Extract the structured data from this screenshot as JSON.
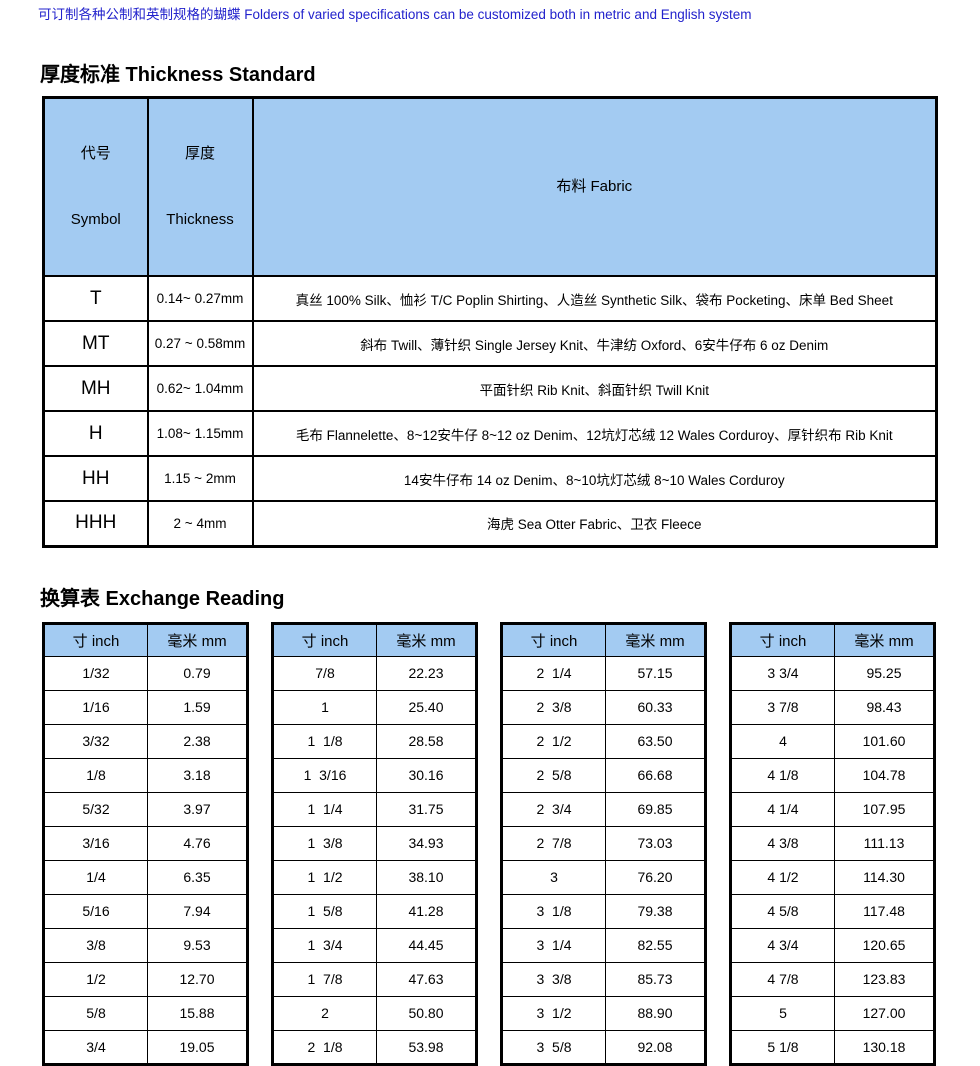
{
  "note": "可订制各种公制和英制规格的蝴蝶 Folders of varied specifications can be customized both in metric and English system",
  "colors": {
    "header_blue": "#A3CBF2",
    "note_blue": "#2222CC",
    "border_black": "#000000"
  },
  "thickness": {
    "title": "厚度标准 Thickness Standard",
    "headers": {
      "symbol_zh": "代号",
      "symbol_en": "Symbol",
      "thickness_zh": "厚度",
      "thickness_en": "Thickness",
      "fabric": "布料 Fabric"
    },
    "columns": [
      "symbol",
      "thickness",
      "fabric"
    ],
    "rows": [
      [
        "T",
        "0.14~ 0.27mm",
        "真丝 100% Silk、恤衫 T/C Poplin Shirting、人造丝 Synthetic Silk、袋布 Pocketing、床单 Bed Sheet"
      ],
      [
        "MT",
        "0.27 ~ 0.58mm",
        "斜布 Twill、薄针织 Single Jersey Knit、牛津纺 Oxford、6安牛仔布 6 oz Denim"
      ],
      [
        "MH",
        "0.62~ 1.04mm",
        "平面针织 Rib Knit、斜面针织 Twill Knit"
      ],
      [
        "H",
        "1.08~ 1.15mm",
        "毛布 Flannelette、8~12安牛仔 8~12 oz Denim、12坑灯芯绒 12 Wales Corduroy、厚针织布 Rib Knit"
      ],
      [
        "HH",
        "1.15 ~ 2mm",
        "14安牛仔布 14 oz Denim、8~10坑灯芯绒 8~10 Wales Corduroy"
      ],
      [
        "HHH",
        "2 ~ 4mm",
        "海虎 Sea Otter Fabric、卫衣 Fleece"
      ]
    ]
  },
  "exchange": {
    "title": "换算表 Exchange Reading",
    "headers": {
      "inch": "寸 inch",
      "mm": "毫米 mm"
    },
    "tables": [
      {
        "rows": [
          [
            "1/32",
            "0.79"
          ],
          [
            "1/16",
            "1.59"
          ],
          [
            "3/32",
            "2.38"
          ],
          [
            "1/8",
            "3.18"
          ],
          [
            "5/32",
            "3.97"
          ],
          [
            "3/16",
            "4.76"
          ],
          [
            "1/4",
            "6.35"
          ],
          [
            "5/16",
            "7.94"
          ],
          [
            "3/8",
            "9.53"
          ],
          [
            "1/2",
            "12.70"
          ],
          [
            "5/8",
            "15.88"
          ],
          [
            "3/4",
            "19.05"
          ]
        ]
      },
      {
        "rows": [
          [
            "7/8",
            "22.23"
          ],
          [
            "1",
            "25.40"
          ],
          [
            "1  1/8",
            "28.58"
          ],
          [
            "1  3/16",
            "30.16"
          ],
          [
            "1  1/4",
            "31.75"
          ],
          [
            "1  3/8",
            "34.93"
          ],
          [
            "1  1/2",
            "38.10"
          ],
          [
            "1  5/8",
            "41.28"
          ],
          [
            "1  3/4",
            "44.45"
          ],
          [
            "1  7/8",
            "47.63"
          ],
          [
            "2",
            "50.80"
          ],
          [
            "2  1/8",
            "53.98"
          ]
        ]
      },
      {
        "rows": [
          [
            "2  1/4",
            "57.15"
          ],
          [
            "2  3/8",
            "60.33"
          ],
          [
            "2  1/2",
            "63.50"
          ],
          [
            "2  5/8",
            "66.68"
          ],
          [
            "2  3/4",
            "69.85"
          ],
          [
            "2  7/8",
            "73.03"
          ],
          [
            "3",
            "76.20"
          ],
          [
            "3  1/8",
            "79.38"
          ],
          [
            "3  1/4",
            "82.55"
          ],
          [
            "3  3/8",
            "85.73"
          ],
          [
            "3  1/2",
            "88.90"
          ],
          [
            "3  5/8",
            "92.08"
          ]
        ]
      },
      {
        "rows": [
          [
            "3 3/4",
            "95.25"
          ],
          [
            "3 7/8",
            "98.43"
          ],
          [
            "4",
            "101.60"
          ],
          [
            "4 1/8",
            "104.78"
          ],
          [
            "4 1/4",
            "107.95"
          ],
          [
            "4 3/8",
            "111.13"
          ],
          [
            "4 1/2",
            "114.30"
          ],
          [
            "4 5/8",
            "117.48"
          ],
          [
            "4 3/4",
            "120.65"
          ],
          [
            "4 7/8",
            "123.83"
          ],
          [
            "5",
            "127.00"
          ],
          [
            "5 1/8",
            "130.18"
          ]
        ]
      }
    ]
  }
}
